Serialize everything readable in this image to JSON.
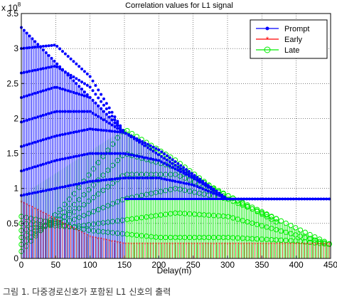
{
  "chart_data": {
    "type": "line",
    "title": "Correlation values for L1 signal",
    "xlabel": "Delay(m)",
    "ylabel": "",
    "y_multiplier_label": "x 10",
    "y_multiplier_exponent": "8",
    "xlim": [
      0,
      450
    ],
    "ylim": [
      0,
      3.5
    ],
    "x_ticks": [
      0,
      50,
      100,
      150,
      200,
      250,
      300,
      350,
      400,
      450
    ],
    "y_ticks": [
      0,
      0.5,
      1,
      1.5,
      2,
      2.5,
      3,
      3.5
    ],
    "x_tick_labels": [
      "0",
      "50",
      "100",
      "150",
      "200",
      "250",
      "300",
      "350",
      "400",
      "450"
    ],
    "y_tick_labels": [
      "0",
      "0.5",
      "1",
      "1.5",
      "2",
      "2.5",
      "3",
      "3.5"
    ],
    "grid": true,
    "legend_position": "top-right",
    "series": [
      {
        "name": "Prompt",
        "color": "#0000ff",
        "marker": "dot",
        "envelope_x": [
          0,
          150,
          300,
          450
        ],
        "envelope_y": [
          3.3,
          1.8,
          0.85,
          0.85
        ],
        "arcs": [
          {
            "x": [
              0,
              50,
              100,
              150
            ],
            "y": [
              3.0,
              3.05,
              2.6,
              1.8
            ]
          },
          {
            "x": [
              0,
              50,
              100,
              150
            ],
            "y": [
              2.65,
              2.75,
              2.45,
              1.8
            ]
          },
          {
            "x": [
              0,
              50,
              100,
              150
            ],
            "y": [
              2.3,
              2.45,
              2.3,
              1.8
            ]
          },
          {
            "x": [
              0,
              50,
              100,
              150
            ],
            "y": [
              1.95,
              2.1,
              2.1,
              1.8
            ]
          },
          {
            "x": [
              0,
              50,
              100,
              150,
              200,
              250,
              300
            ],
            "y": [
              1.6,
              1.75,
              1.85,
              1.8,
              1.55,
              1.2,
              0.85
            ]
          },
          {
            "x": [
              0,
              50,
              100,
              150,
              200,
              250,
              300
            ],
            "y": [
              1.25,
              1.4,
              1.5,
              1.5,
              1.4,
              1.15,
              0.85
            ]
          },
          {
            "x": [
              0,
              50,
              100,
              150,
              200,
              250,
              300
            ],
            "y": [
              0.9,
              1.0,
              1.1,
              1.15,
              1.15,
              1.05,
              0.85
            ]
          }
        ]
      },
      {
        "name": "Early",
        "color": "#ff0000",
        "marker": "star",
        "envelope_x": [
          0,
          100,
          150,
          450
        ],
        "envelope_y": [
          0.8,
          0.3,
          0.2,
          0.2
        ]
      },
      {
        "name": "Late",
        "color": "#00ee00",
        "marker": "circle",
        "envelope_x": [
          0,
          150,
          300,
          450
        ],
        "envelope_y": [
          0.9,
          1.85,
          0.85,
          0.2
        ],
        "arcs": [
          {
            "x": [
              0,
              75,
              150,
              225,
              300
            ],
            "y": [
              0.1,
              0.9,
              1.85,
              1.4,
              0.85
            ]
          },
          {
            "x": [
              0,
              75,
              150,
              225,
              300,
              375
            ],
            "y": [
              0.2,
              0.75,
              1.5,
              1.3,
              0.9,
              0.5
            ]
          },
          {
            "x": [
              0,
              75,
              150,
              225,
              300,
              375
            ],
            "y": [
              0.3,
              0.65,
              1.2,
              1.2,
              0.9,
              0.55
            ]
          },
          {
            "x": [
              0,
              75,
              150,
              225,
              300,
              375,
              450
            ],
            "y": [
              0.4,
              0.55,
              0.85,
              1.0,
              0.85,
              0.55,
              0.2
            ]
          },
          {
            "x": [
              0,
              75,
              150,
              225,
              300,
              375,
              450
            ],
            "y": [
              0.5,
              0.45,
              0.55,
              0.65,
              0.6,
              0.4,
              0.2
            ]
          },
          {
            "x": [
              0,
              100,
              200,
              300,
              400,
              450
            ],
            "y": [
              0.6,
              0.4,
              0.3,
              0.3,
              0.25,
              0.2
            ]
          }
        ]
      }
    ]
  },
  "caption": "그림 1. 다중경로신호가 포함된 L1 신호의 출력"
}
